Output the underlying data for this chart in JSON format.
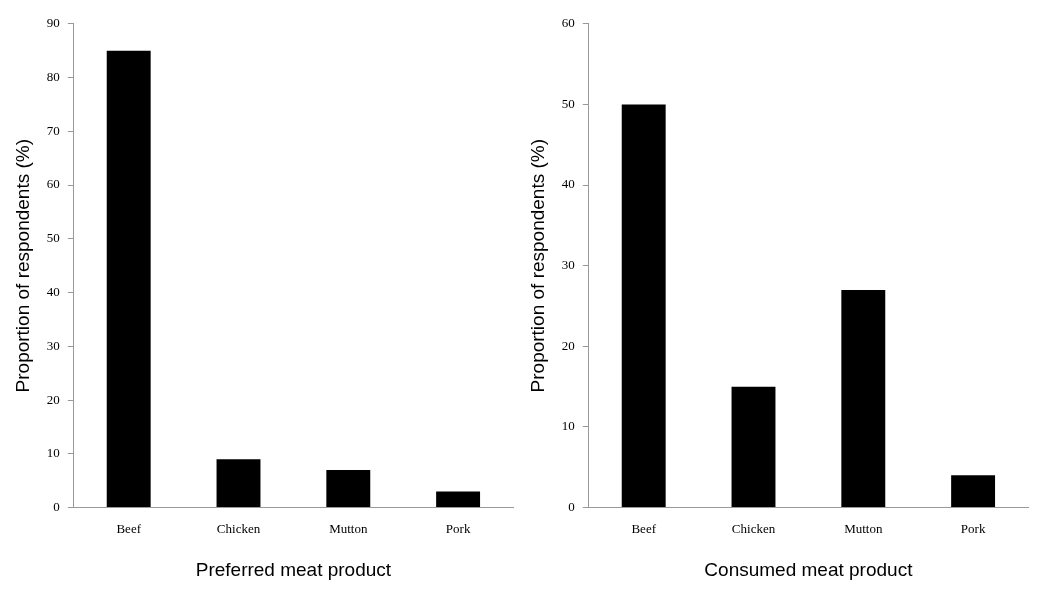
{
  "chart_data": [
    {
      "type": "bar",
      "categories": [
        "Beef",
        "Chicken",
        "Mutton",
        "Pork"
      ],
      "values": [
        85,
        9,
        7,
        3
      ],
      "color": "#000000",
      "ylim": [
        0,
        90
      ],
      "yticks": [
        0,
        10,
        20,
        30,
        40,
        50,
        60,
        70,
        80,
        90
      ],
      "xlabel": "Preferred meat product",
      "ylabel": "Proportion of respondents (%)",
      "grid": false,
      "legend": false
    },
    {
      "type": "bar",
      "categories": [
        "Beef",
        "Chicken",
        "Mutton",
        "Pork"
      ],
      "values": [
        50,
        15,
        27,
        4
      ],
      "color": "#000000",
      "ylim": [
        0,
        60
      ],
      "yticks": [
        0,
        10,
        20,
        30,
        40,
        50,
        60
      ],
      "xlabel": "Consumed meat product",
      "ylabel": "Proportion of respondents (%)",
      "grid": false,
      "legend": false
    }
  ]
}
